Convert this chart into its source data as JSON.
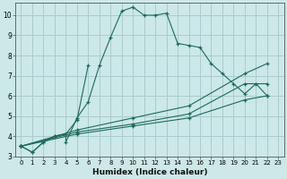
{
  "xlabel": "Humidex (Indice chaleur)",
  "bg_color": "#cce8e8",
  "grid_color": "#aacccc",
  "line_color": "#1a6b5a",
  "xlim": [
    -0.5,
    23.5
  ],
  "ylim": [
    3,
    10.6
  ],
  "xticks": [
    0,
    1,
    2,
    3,
    4,
    5,
    6,
    7,
    8,
    9,
    10,
    11,
    12,
    13,
    14,
    15,
    16,
    17,
    18,
    19,
    20,
    21,
    22,
    23
  ],
  "yticks": [
    3,
    4,
    5,
    6,
    7,
    8,
    9,
    10
  ],
  "line1_x": [
    0,
    1,
    2,
    3,
    4,
    4,
    5,
    6,
    7,
    8,
    9,
    10,
    11,
    12,
    13,
    14,
    15,
    16,
    17,
    18,
    19,
    20,
    21,
    22
  ],
  "line1_y": [
    3.5,
    3.2,
    3.7,
    4.0,
    4.1,
    3.7,
    4.9,
    5.7,
    7.5,
    8.9,
    10.2,
    10.4,
    10.0,
    10.0,
    10.1,
    8.6,
    8.5,
    8.4,
    7.6,
    7.1,
    6.6,
    6.1,
    6.6,
    6.0
  ],
  "line2_x": [
    0,
    1,
    2,
    3,
    4,
    5,
    6
  ],
  "line2_y": [
    3.5,
    3.2,
    3.7,
    4.0,
    4.1,
    4.8,
    7.5
  ],
  "line3_x": [
    0,
    5,
    10,
    15,
    20,
    22
  ],
  "line3_y": [
    3.5,
    4.3,
    4.9,
    5.5,
    7.1,
    7.6
  ],
  "line4_x": [
    0,
    5,
    10,
    15,
    20,
    22
  ],
  "line4_y": [
    3.5,
    4.2,
    4.6,
    5.1,
    6.6,
    6.6
  ],
  "line5_x": [
    0,
    5,
    10,
    15,
    20,
    22
  ],
  "line5_y": [
    3.5,
    4.1,
    4.5,
    4.9,
    5.8,
    6.0
  ]
}
